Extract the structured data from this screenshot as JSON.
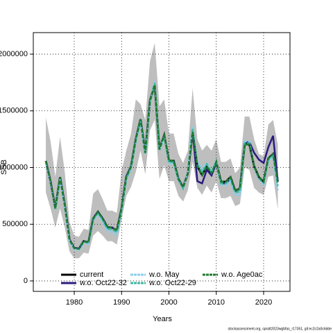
{
  "chart_data": {
    "type": "line",
    "xlabel": "Years",
    "ylabel": "SSB",
    "footnote": "stockassessment.org, spratt2023wgbfas_r17351, git:ec2c2a0c6dde",
    "x": [
      1974,
      1975,
      1976,
      1977,
      1978,
      1979,
      1980,
      1981,
      1982,
      1983,
      1984,
      1985,
      1986,
      1987,
      1988,
      1989,
      1990,
      1991,
      1992,
      1993,
      1994,
      1995,
      1996,
      1997,
      1998,
      1999,
      2000,
      2001,
      2002,
      2003,
      2004,
      2005,
      2006,
      2007,
      2008,
      2009,
      2010,
      2011,
      2012,
      2013,
      2014,
      2015,
      2016,
      2017,
      2018,
      2019,
      2020,
      2021,
      2022,
      2023
    ],
    "xlim": [
      1971.35,
      2025.57
    ],
    "xticks": [
      1980,
      1990,
      2000,
      2010,
      2020
    ],
    "ylim": [
      -92000,
      2190000
    ],
    "yticks": [
      0,
      500000,
      1000000,
      1500000,
      2000000
    ],
    "grid": true,
    "legend": "bottom",
    "band": {
      "color": "#bebebe",
      "upper": [
        1440000,
        1230000,
        920000,
        1270000,
        960000,
        520000,
        400000,
        390000,
        460000,
        450000,
        770000,
        810000,
        720000,
        620000,
        620000,
        600000,
        970000,
        1150000,
        1300000,
        1600000,
        1560000,
        1420000,
        1940000,
        2100000,
        1540000,
        1600000,
        1300000,
        1300000,
        1120000,
        1040000,
        1150000,
        1700000,
        1250000,
        1150000,
        1200000,
        1150000,
        1250000,
        1050000,
        1050000,
        1080000,
        950000,
        1000000,
        1450000,
        1450000,
        1250000,
        1120000,
        1100000,
        1380000,
        1420000,
        1200000
      ],
      "lower": [
        780000,
        640000,
        470000,
        640000,
        470000,
        260000,
        200000,
        200000,
        250000,
        240000,
        400000,
        440000,
        400000,
        350000,
        350000,
        320000,
        540000,
        750000,
        830000,
        960000,
        1150000,
        940000,
        1330000,
        1420000,
        900000,
        1020000,
        880000,
        880000,
        750000,
        700000,
        800000,
        1050000,
        820000,
        760000,
        840000,
        780000,
        880000,
        730000,
        730000,
        750000,
        660000,
        680000,
        1000000,
        980000,
        820000,
        780000,
        760000,
        920000,
        930000,
        630000
      ]
    },
    "series": [
      {
        "name": "current",
        "color": "#000000",
        "dash": false,
        "values": [
          1058000,
          875000,
          640000,
          915000,
          670000,
          365000,
          290000,
          285000,
          350000,
          340000,
          550000,
          610000,
          550000,
          475000,
          470000,
          445000,
          640000,
          920000,
          1010000,
          1250000,
          1425000,
          1130000,
          1590000,
          1730000,
          1160000,
          1285000,
          1060000,
          1060000,
          900000,
          825000,
          950000,
          1315000,
          1010000,
          935000,
          1010000,
          950000,
          1050000,
          875000,
          875000,
          915000,
          795000,
          815000,
          1205000,
          1205000,
          1010000,
          915000,
          875000,
          1080000,
          1120000,
          875000
        ]
      },
      {
        "name": "w.o. Oct22-32",
        "color": "#2a1a80",
        "dash": false,
        "values": [
          1058000,
          875000,
          640000,
          915000,
          670000,
          365000,
          290000,
          285000,
          350000,
          340000,
          550000,
          610000,
          550000,
          475000,
          470000,
          445000,
          640000,
          920000,
          1010000,
          1250000,
          1425000,
          1130000,
          1590000,
          1730000,
          1160000,
          1285000,
          1060000,
          1060000,
          900000,
          825000,
          950000,
          1320000,
          880000,
          860000,
          980000,
          930000,
          1040000,
          860000,
          860000,
          900000,
          800000,
          815000,
          1220000,
          1225000,
          1130000,
          1070000,
          1040000,
          1180000,
          1280000,
          880000
        ]
      },
      {
        "name": "w.o. May",
        "color": "#87ceeb",
        "dash": true,
        "values": [
          1050000,
          860000,
          630000,
          900000,
          650000,
          350000,
          280000,
          275000,
          335000,
          330000,
          530000,
          590000,
          520000,
          440000,
          430000,
          410000,
          620000,
          890000,
          990000,
          1230000,
          1400000,
          1120000,
          1570000,
          1760000,
          1150000,
          1270000,
          1040000,
          1030000,
          890000,
          810000,
          960000,
          1360000,
          1060000,
          980000,
          1040000,
          960000,
          1060000,
          850000,
          840000,
          880000,
          760000,
          760000,
          1230000,
          1230000,
          1010000,
          900000,
          850000,
          1060000,
          1100000,
          800000
        ]
      },
      {
        "name": "w.o. Oct22-29",
        "color": "#3cb8a0",
        "dash": true,
        "values": [
          1055000,
          870000,
          635000,
          910000,
          660000,
          360000,
          285000,
          280000,
          345000,
          335000,
          540000,
          600000,
          540000,
          460000,
          455000,
          430000,
          630000,
          905000,
          1000000,
          1240000,
          1415000,
          1125000,
          1580000,
          1745000,
          1155000,
          1280000,
          1050000,
          1045000,
          895000,
          815000,
          955000,
          1340000,
          1030000,
          960000,
          1030000,
          955000,
          1055000,
          860000,
          860000,
          900000,
          780000,
          790000,
          1215000,
          1215000,
          1005000,
          905000,
          865000,
          1070000,
          1110000,
          840000
        ]
      },
      {
        "name": "w.o. Age0ac",
        "color": "#1e7a2e",
        "dash": true,
        "values": [
          1058000,
          875000,
          640000,
          915000,
          670000,
          365000,
          290000,
          285000,
          350000,
          340000,
          550000,
          610000,
          550000,
          475000,
          470000,
          445000,
          640000,
          920000,
          1010000,
          1250000,
          1425000,
          1130000,
          1590000,
          1730000,
          1160000,
          1285000,
          1060000,
          1060000,
          900000,
          825000,
          950000,
          1315000,
          1010000,
          935000,
          1010000,
          950000,
          1050000,
          875000,
          875000,
          915000,
          795000,
          815000,
          1205000,
          1205000,
          1010000,
          915000,
          875000,
          1080000,
          1120000,
          875000
        ]
      }
    ]
  }
}
